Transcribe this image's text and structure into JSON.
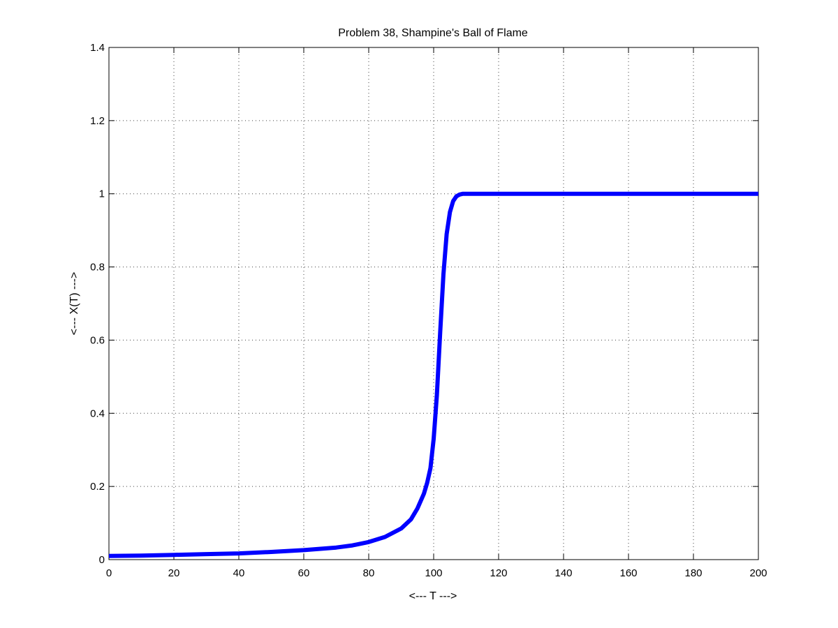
{
  "chart_data": {
    "type": "line",
    "title": "Problem 38, Shampine's Ball of Flame",
    "xlabel": "<--- T --->",
    "ylabel": "<--- X(T) --->",
    "xlim": [
      0,
      200
    ],
    "ylim": [
      0,
      1.4
    ],
    "xticks": [
      0,
      20,
      40,
      60,
      80,
      100,
      120,
      140,
      160,
      180,
      200
    ],
    "xtick_labels": [
      "0",
      "20",
      "40",
      "60",
      "80",
      "100",
      "120",
      "140",
      "160",
      "180",
      "200"
    ],
    "yticks": [
      0,
      0.2,
      0.4,
      0.6,
      0.8,
      1.0,
      1.2,
      1.4
    ],
    "ytick_labels": [
      "0",
      "0.2",
      "0.4",
      "0.6",
      "0.8",
      "1",
      "1.2",
      "1.4"
    ],
    "grid": true,
    "series": [
      {
        "color": "#0000ff",
        "x": [
          0,
          10,
          20,
          30,
          40,
          50,
          60,
          70,
          75,
          80,
          85,
          90,
          93,
          95,
          97,
          98,
          99,
          100,
          101,
          102,
          103,
          104,
          105,
          106,
          107,
          108,
          109,
          110,
          115,
          120,
          140,
          160,
          180,
          200
        ],
        "y": [
          0.01,
          0.011,
          0.013,
          0.015,
          0.017,
          0.021,
          0.026,
          0.033,
          0.039,
          0.048,
          0.062,
          0.085,
          0.11,
          0.14,
          0.18,
          0.21,
          0.25,
          0.33,
          0.45,
          0.62,
          0.78,
          0.89,
          0.95,
          0.98,
          0.993,
          0.998,
          1.0,
          1.0,
          1.0,
          1.0,
          1.0,
          1.0,
          1.0,
          1.0
        ]
      }
    ]
  }
}
